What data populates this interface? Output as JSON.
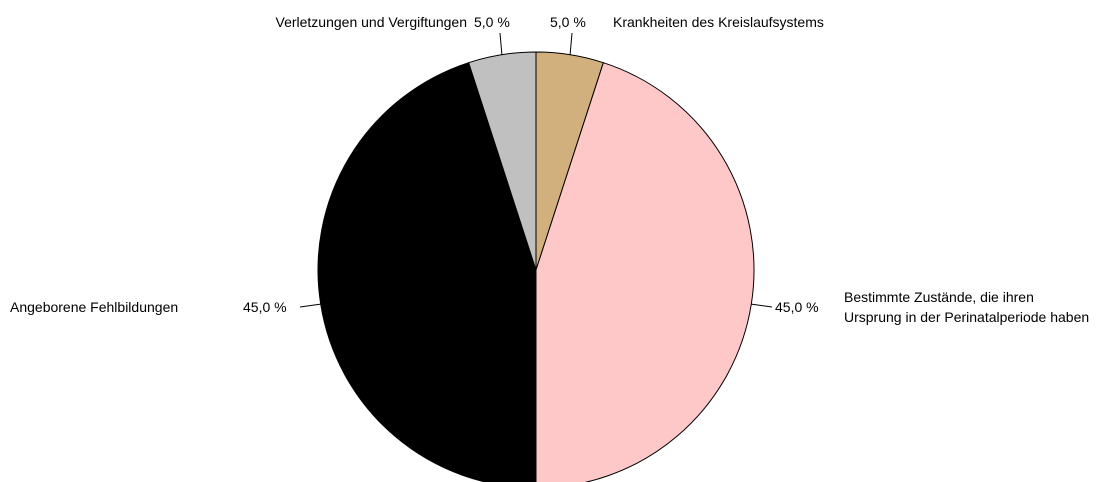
{
  "chart_data": {
    "type": "pie",
    "categories": [
      "Krankheiten des Kreislaufsystems",
      "Bestimmte Zustände, die ihren Ursprung in der Perinatalperiode haben",
      "Angeborene Fehlbildungen",
      "Verletzungen und Vergiftungen"
    ],
    "values": [
      5,
      45,
      45,
      5
    ],
    "value_labels": [
      "5,0 %",
      "45,0 %",
      "45,0 %",
      "5,0 %"
    ],
    "colors": [
      "#d2b07e",
      "#ffc8c8",
      "#000000",
      "#c0c0c0"
    ]
  }
}
